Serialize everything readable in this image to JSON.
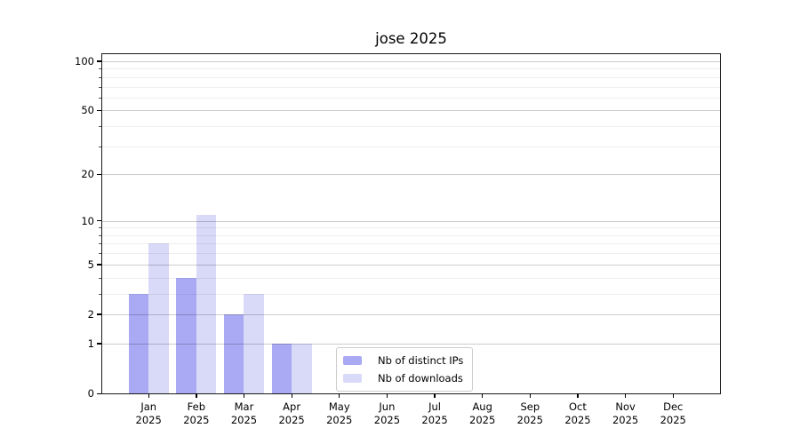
{
  "chart_data": {
    "type": "bar",
    "title": "jose 2025",
    "x": {
      "months": [
        "Jan",
        "Feb",
        "Mar",
        "Apr",
        "May",
        "Jun",
        "Jul",
        "Aug",
        "Sep",
        "Oct",
        "Nov",
        "Dec"
      ],
      "year": "2025"
    },
    "series": [
      {
        "name": "Nb of distinct IPs",
        "color": "#a9a9f4",
        "values": [
          3,
          4,
          2,
          1,
          0,
          0,
          0,
          0,
          0,
          0,
          0,
          0
        ]
      },
      {
        "name": "Nb of downloads",
        "color": "#d9d9f8",
        "values": [
          7,
          11,
          3,
          1,
          0,
          0,
          0,
          0,
          0,
          0,
          0,
          0
        ]
      }
    ],
    "y_axis": {
      "scale": "log1p",
      "major_ticks": [
        0,
        1,
        2,
        5,
        10,
        20,
        50,
        100
      ],
      "minor_ticks": [
        3,
        4,
        6,
        7,
        8,
        9,
        30,
        40,
        60,
        70,
        80,
        90
      ],
      "ylim": [
        0,
        113
      ]
    },
    "legend": {
      "position": "inside-lower-center"
    },
    "grid": {
      "major": true,
      "minor": true
    },
    "colors": {
      "spine": "#1a1a1a",
      "grid_major": "#cccccc",
      "grid_minor": "#efefef",
      "text": "#000000"
    }
  }
}
